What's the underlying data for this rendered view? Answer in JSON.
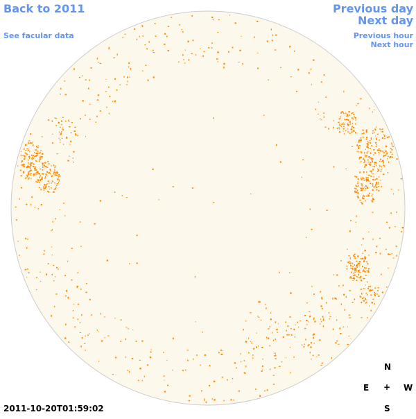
{
  "nav": {
    "back_label": "Back to 2011",
    "facular_label": "See facular data",
    "prev_day_label": "Previous day",
    "next_day_label": "Next day",
    "prev_hour_label": "Previous hour",
    "next_hour_label": "Next hour"
  },
  "compass": {
    "north": "N",
    "south": "S",
    "east": "E",
    "west": "W",
    "center": "+"
  },
  "timestamp": "2011-10-20T01:59:02",
  "colors": {
    "disk_fill": "#fdf8ec",
    "disk_stroke": "#cccccc",
    "spot": "#ff8c00",
    "link": "#6495ed"
  }
}
